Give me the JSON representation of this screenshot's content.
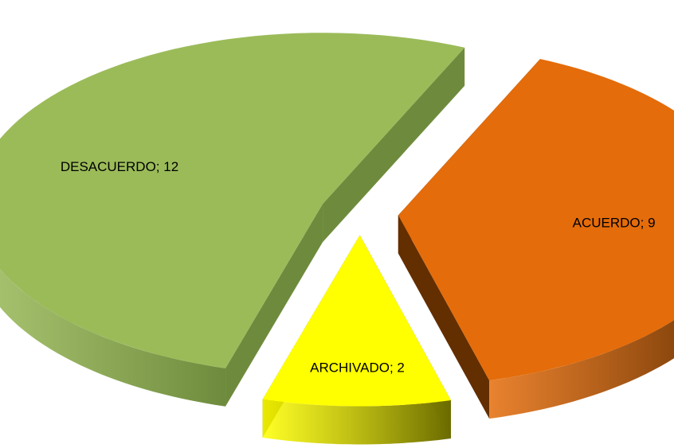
{
  "chart_data": {
    "type": "pie",
    "title": "",
    "legend": "none",
    "style": "3d-exploded",
    "categories": [
      "ACUERDO",
      "ARCHIVADO",
      "DESACUERDO"
    ],
    "values": [
      9,
      2,
      12
    ],
    "labels": [
      "ACUERDO; 9",
      "ARCHIVADO; 2",
      "DESACUERDO; 12"
    ],
    "colors": {
      "ACUERDO": "#E46C0A",
      "ARCHIVADO": "#FFFF00",
      "DESACUERDO": "#9BBB59"
    },
    "side_colors": {
      "ACUERDO": "#632E00",
      "ARCHIVADO": "#6B6B00",
      "DESACUERDO": "#6E8B3D"
    }
  }
}
